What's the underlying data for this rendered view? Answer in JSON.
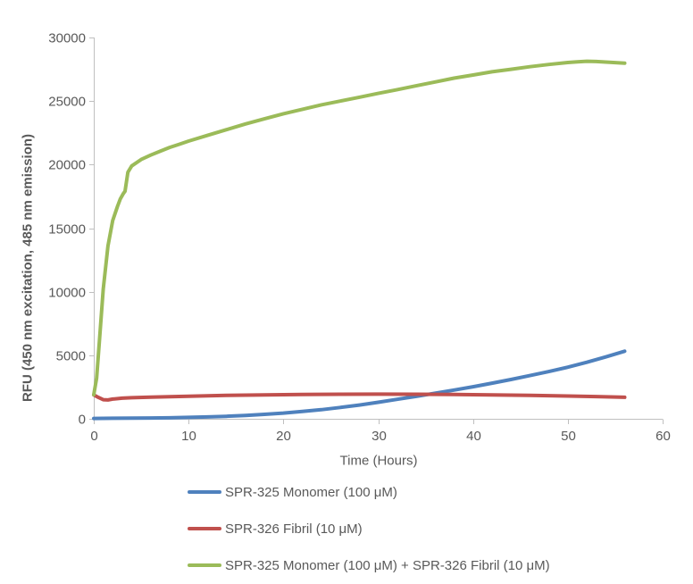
{
  "chart_data": {
    "type": "line",
    "title": "",
    "xlabel": "Time (Hours)",
    "ylabel": "RFU (450 nm excitation, 485 nm emission)",
    "xlim": [
      0,
      60
    ],
    "ylim": [
      0,
      30000
    ],
    "x_ticks": [
      0,
      10,
      20,
      30,
      40,
      50,
      60
    ],
    "y_ticks": [
      0,
      5000,
      10000,
      15000,
      20000,
      25000,
      30000
    ],
    "grid": false,
    "legend_position": "bottom-left",
    "axis_color": "#BFBFBF",
    "text_color": "#595959",
    "line_width": 4,
    "series": [
      {
        "name": "SPR-325 Monomer (100 μM)",
        "color": "#4F81BD",
        "x": [
          0,
          2,
          4,
          6,
          8,
          10,
          12,
          14,
          16,
          18,
          20,
          22,
          24,
          26,
          28,
          30,
          32,
          34,
          36,
          38,
          40,
          42,
          44,
          46,
          48,
          50,
          52,
          54,
          56
        ],
        "y": [
          30,
          40,
          50,
          60,
          80,
          110,
          150,
          200,
          270,
          350,
          450,
          580,
          720,
          890,
          1080,
          1300,
          1530,
          1760,
          2010,
          2260,
          2520,
          2800,
          3090,
          3400,
          3720,
          4060,
          4450,
          4870,
          5320
        ]
      },
      {
        "name": "SPR-326 Fibril (10 μM)",
        "color": "#C0504D",
        "x": [
          0,
          0.5,
          1,
          1.5,
          2,
          3,
          4,
          6,
          8,
          10,
          14,
          18,
          22,
          26,
          30,
          34,
          38,
          42,
          46,
          50,
          53,
          56
        ],
        "y": [
          1880,
          1680,
          1500,
          1480,
          1550,
          1620,
          1660,
          1700,
          1740,
          1780,
          1840,
          1880,
          1910,
          1930,
          1940,
          1930,
          1910,
          1880,
          1840,
          1790,
          1750,
          1690
        ]
      },
      {
        "name": "SPR-325 Monomer (100 μM) + SPR-326 Fibril (10 μM)",
        "color": "#9BBB59",
        "x": [
          0,
          0.3,
          0.6,
          1,
          1.5,
          2,
          2.5,
          2.8,
          3.1,
          3.3,
          3.6,
          4,
          5,
          6,
          7,
          8,
          9,
          10,
          12,
          14,
          16,
          18,
          20,
          22,
          24,
          26,
          28,
          30,
          32,
          34,
          36,
          38,
          40,
          42,
          44,
          46,
          48,
          50,
          51,
          52,
          53,
          54,
          56
        ],
        "y": [
          1900,
          3200,
          6200,
          10200,
          13600,
          15600,
          16700,
          17300,
          17700,
          17900,
          19400,
          19900,
          20400,
          20750,
          21050,
          21350,
          21600,
          21850,
          22300,
          22750,
          23200,
          23600,
          24000,
          24350,
          24700,
          25000,
          25300,
          25600,
          25900,
          26200,
          26500,
          26800,
          27050,
          27300,
          27500,
          27700,
          27880,
          28030,
          28090,
          28130,
          28110,
          28070,
          27980
        ]
      }
    ]
  }
}
